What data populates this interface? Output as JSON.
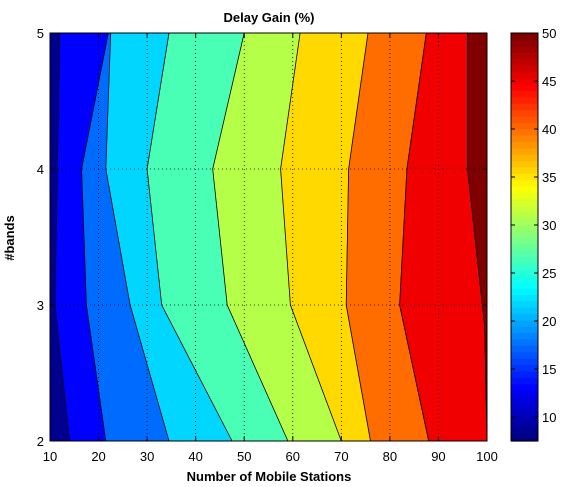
{
  "chart_data": {
    "type": "contour",
    "title": "Delay Gain (%)",
    "xlabel": "Number of Mobile Stations",
    "ylabel": "#bands",
    "xlim": [
      10,
      100
    ],
    "ylim": [
      2,
      5
    ],
    "x_ticks": [
      "10",
      "20",
      "30",
      "40",
      "50",
      "60",
      "70",
      "80",
      "90",
      "100"
    ],
    "y_ticks": [
      "2",
      "3",
      "4",
      "5"
    ],
    "grid": "dotted",
    "colormap": "jet",
    "colorbar": {
      "range": [
        7.5,
        50
      ],
      "ticks": [
        "10",
        "15",
        "20",
        "25",
        "30",
        "35",
        "40",
        "45",
        "50"
      ]
    },
    "contour_levels": [
      10,
      15,
      20,
      25,
      30,
      35,
      40,
      45,
      50
    ],
    "level_colors": [
      "#00008f",
      "#0000ff",
      "#006cff",
      "#00d6ff",
      "#49ffb6",
      "#b6ff49",
      "#ffd900",
      "#ff6c00",
      "#f00000",
      "#800000"
    ],
    "contour_lines": [
      {
        "level": 10,
        "x": [
          14.0,
          11.0,
          11.5,
          12.0
        ],
        "y": [
          2,
          3,
          4,
          5
        ]
      },
      {
        "level": 15,
        "x": [
          21.5,
          17.5,
          16.5,
          22.0
        ],
        "y": [
          2,
          3,
          4,
          5
        ]
      },
      {
        "level": 20,
        "x": [
          34.5,
          26.5,
          21.5,
          22.5
        ],
        "y": [
          2,
          3,
          4,
          5
        ]
      },
      {
        "level": 25,
        "x": [
          47.5,
          33.0,
          30.0,
          34.5
        ],
        "y": [
          2,
          3,
          4,
          5
        ]
      },
      {
        "level": 30,
        "x": [
          59.0,
          46.5,
          43.5,
          50.0
        ],
        "y": [
          2,
          3,
          4,
          5
        ]
      },
      {
        "level": 35,
        "x": [
          70.0,
          59.5,
          57.5,
          61.5
        ],
        "y": [
          2,
          3,
          4,
          5
        ]
      },
      {
        "level": 40,
        "x": [
          76.0,
          71.0,
          71.5,
          75.5
        ],
        "y": [
          2,
          3,
          4,
          5
        ]
      },
      {
        "level": 45,
        "x": [
          88.0,
          82.0,
          83.5,
          87.5
        ],
        "y": [
          2,
          3,
          4,
          5
        ]
      },
      {
        "level": 50,
        "x": [
          100.0,
          99.5,
          96.0,
          96.0
        ],
        "y": [
          2,
          2.85,
          4,
          5
        ]
      }
    ]
  }
}
